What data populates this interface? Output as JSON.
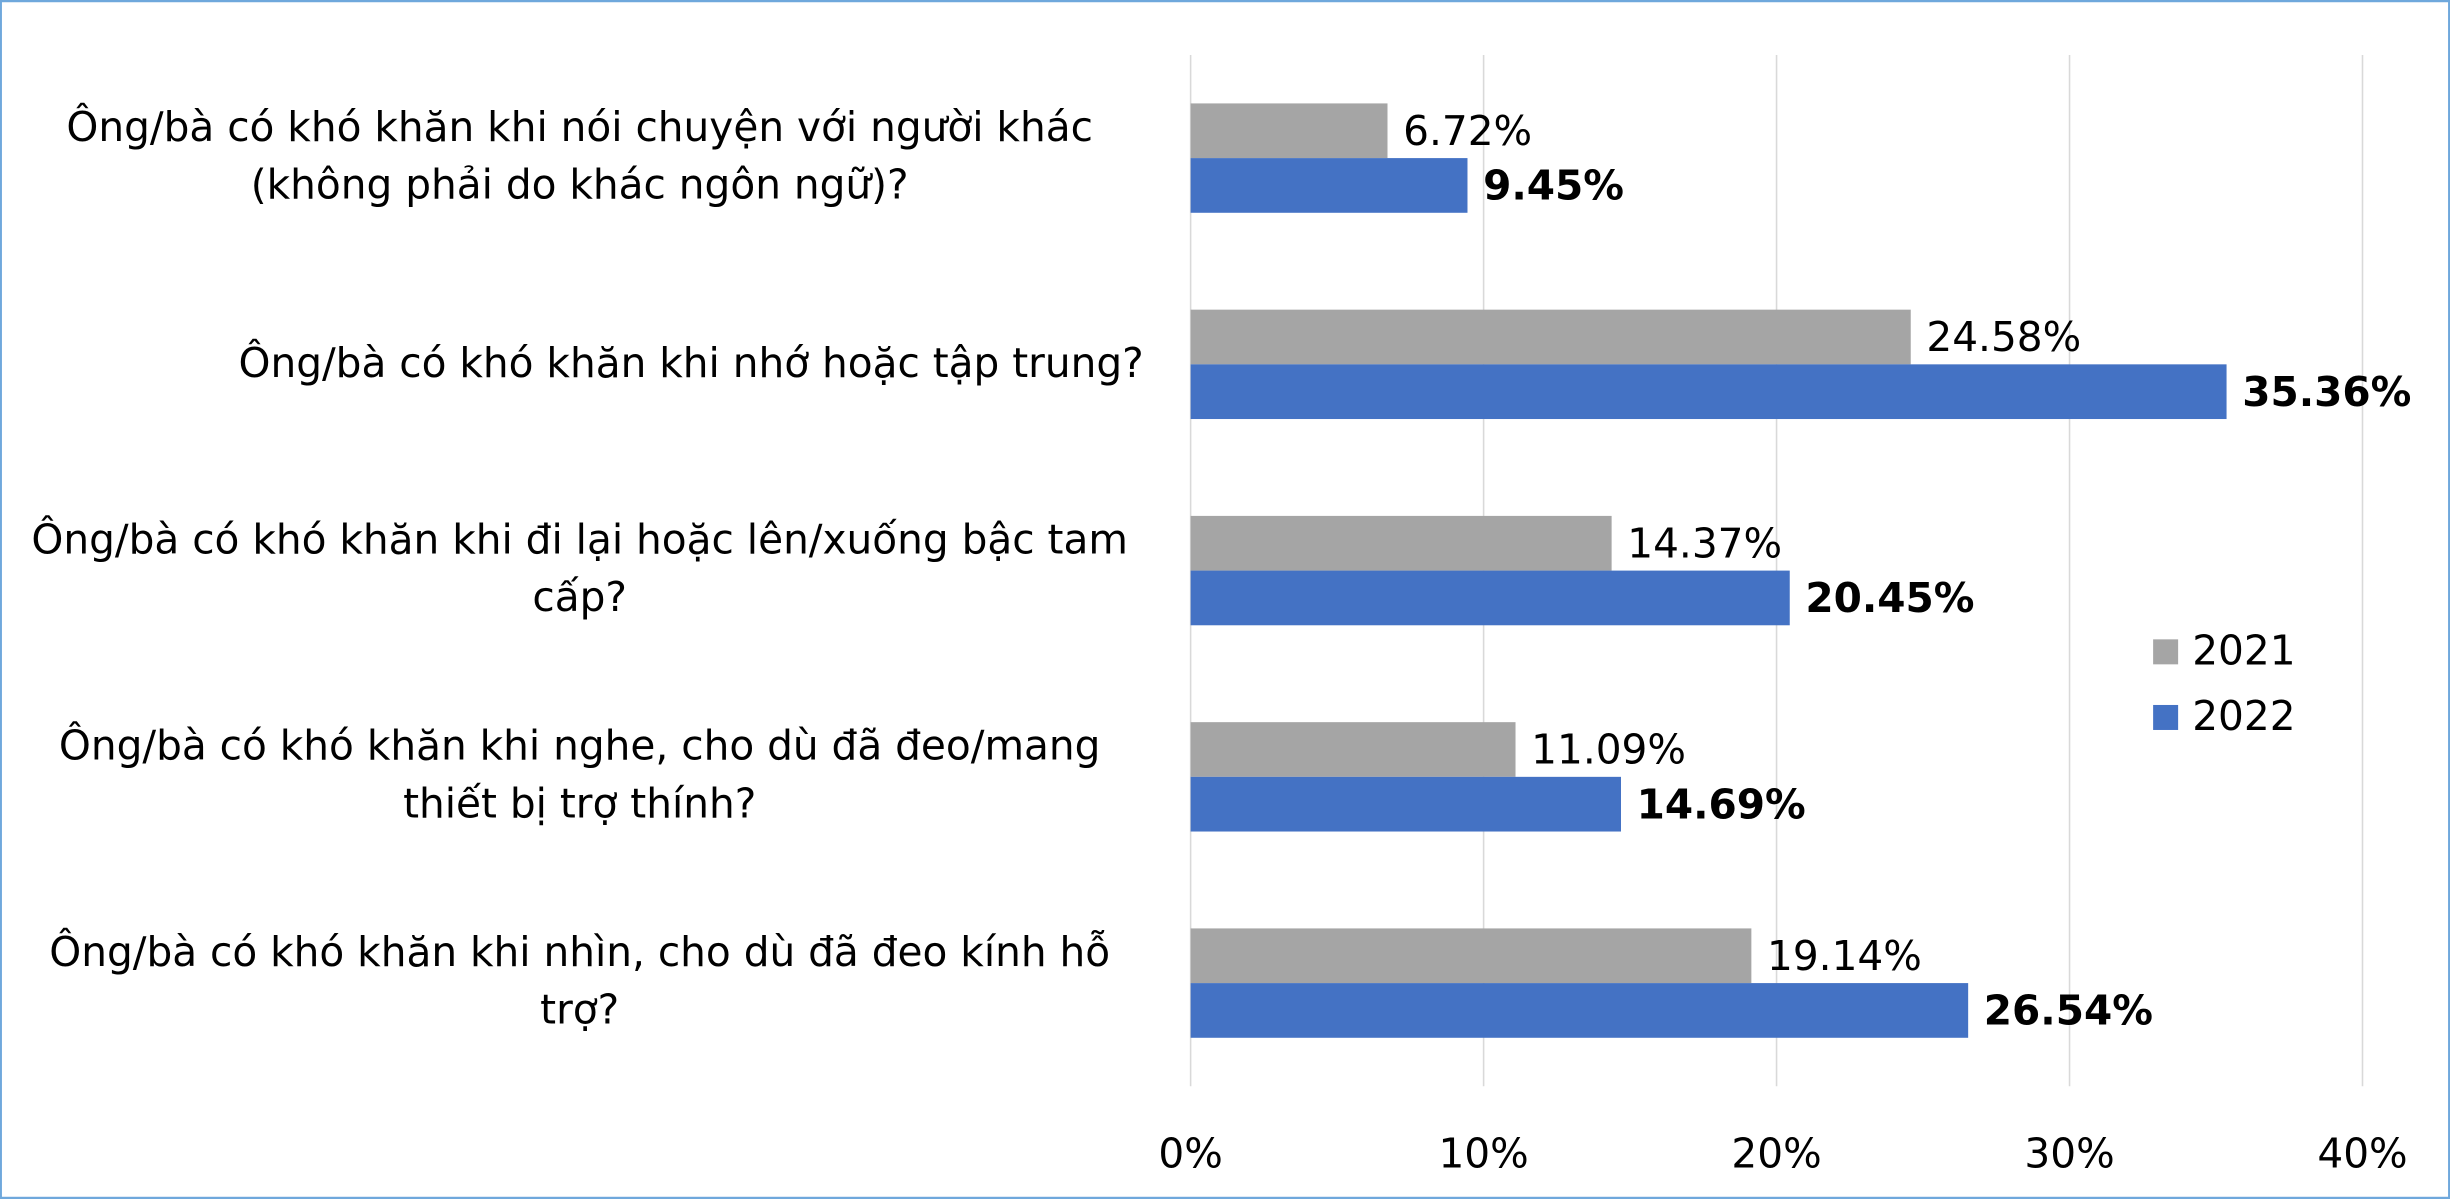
{
  "chart_data": {
    "type": "bar",
    "orientation": "horizontal",
    "categories": [
      "Ông/bà có khó khăn khi nói chuyện với người khác (không phải do khác ngôn ngữ)?",
      "Ông/bà có khó khăn khi nhớ hoặc tập trung?",
      "Ông/bà có khó khăn khi đi lại hoặc lên/xuống bậc tam cấp?",
      "Ông/bà có khó khăn khi nghe, cho dù đã đeo/mang thiết bị trợ thính?",
      "Ông/bà có khó khăn khi nhìn, cho dù đã đeo kính hỗ trợ?"
    ],
    "series": [
      {
        "name": "2021",
        "color": "#a5a5a5",
        "values": [
          6.72,
          24.58,
          14.37,
          11.09,
          19.14
        ],
        "value_labels": [
          "6.72%",
          "24.58%",
          "14.37%",
          "11.09%",
          "19.14%"
        ]
      },
      {
        "name": "2022",
        "color": "#4472c4",
        "values": [
          9.45,
          35.36,
          20.45,
          14.69,
          26.54
        ],
        "value_labels": [
          "9.45%",
          "35.36%",
          "20.45%",
          "14.69%",
          "26.54%"
        ]
      }
    ],
    "xlim": [
      0,
      40
    ],
    "xticks": [
      {
        "value": 0,
        "label": "0%"
      },
      {
        "value": 10,
        "label": "10%"
      },
      {
        "value": 20,
        "label": "20%"
      },
      {
        "value": 30,
        "label": "30%"
      },
      {
        "value": 40,
        "label": "40%"
      }
    ],
    "grid": true,
    "legend": "right"
  }
}
